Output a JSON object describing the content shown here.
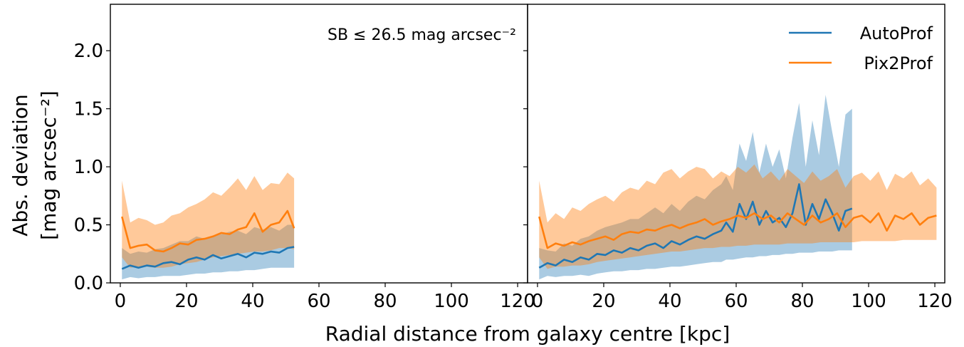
{
  "figure": {
    "xlabel": "Radial distance from galaxy centre [kpc]",
    "ylabel_line1": "Abs. deviation",
    "ylabel_line2": "[mag arcsec⁻²]"
  },
  "colors": {
    "autoprof": "#1f77b4",
    "pix2prof": "#ff7f0e"
  },
  "chart_data": [
    {
      "type": "line",
      "panel": "left",
      "annotation": "SB ≤ 26.5 mag arcsec⁻²",
      "xlim": [
        -3,
        123
      ],
      "ylim": [
        0,
        2.4
      ],
      "xticks": [
        "0",
        "20",
        "40",
        "60",
        "80",
        "100",
        "120"
      ],
      "yticks": [
        "0.0",
        "0.5",
        "1.0",
        "1.5",
        "2.0"
      ],
      "legend": "none",
      "series": [
        {
          "name": "AutoProf",
          "color": "#1f77b4",
          "x": [
            0.5,
            3,
            5.5,
            8,
            10.5,
            13,
            15.5,
            18,
            20.5,
            23,
            25.5,
            28,
            30.5,
            33,
            35.5,
            38,
            40.5,
            43,
            45.5,
            48,
            50.5,
            52.5
          ],
          "values": [
            0.12,
            0.15,
            0.13,
            0.15,
            0.14,
            0.17,
            0.18,
            0.16,
            0.2,
            0.22,
            0.2,
            0.24,
            0.21,
            0.23,
            0.25,
            0.22,
            0.26,
            0.25,
            0.27,
            0.26,
            0.3,
            0.31
          ],
          "band_low": [
            0.03,
            0.05,
            0.04,
            0.05,
            0.05,
            0.06,
            0.06,
            0.06,
            0.07,
            0.08,
            0.08,
            0.09,
            0.09,
            0.1,
            0.1,
            0.11,
            0.11,
            0.12,
            0.13,
            0.13,
            0.13,
            0.13
          ],
          "band_high": [
            0.3,
            0.25,
            0.27,
            0.26,
            0.29,
            0.3,
            0.33,
            0.36,
            0.36,
            0.4,
            0.38,
            0.4,
            0.42,
            0.44,
            0.45,
            0.42,
            0.48,
            0.46,
            0.48,
            0.45,
            0.5,
            0.5
          ]
        },
        {
          "name": "Pix2Prof",
          "color": "#ff7f0e",
          "x": [
            0.5,
            3,
            5.5,
            8,
            10.5,
            13,
            15.5,
            18,
            20.5,
            23,
            25.5,
            28,
            30.5,
            33,
            35.5,
            38,
            40.5,
            43,
            45.5,
            48,
            50.5,
            52.5
          ],
          "values": [
            0.57,
            0.3,
            0.32,
            0.33,
            0.28,
            0.27,
            0.3,
            0.34,
            0.33,
            0.37,
            0.38,
            0.4,
            0.43,
            0.42,
            0.46,
            0.48,
            0.6,
            0.44,
            0.5,
            0.52,
            0.62,
            0.47
          ],
          "band_low": [
            0.22,
            0.13,
            0.14,
            0.14,
            0.13,
            0.13,
            0.14,
            0.16,
            0.17,
            0.18,
            0.2,
            0.22,
            0.23,
            0.24,
            0.25,
            0.26,
            0.27,
            0.27,
            0.28,
            0.3,
            0.3,
            0.29
          ],
          "band_high": [
            0.88,
            0.52,
            0.56,
            0.54,
            0.5,
            0.52,
            0.58,
            0.6,
            0.65,
            0.68,
            0.72,
            0.78,
            0.75,
            0.82,
            0.9,
            0.8,
            0.92,
            0.8,
            0.86,
            0.85,
            0.95,
            0.9
          ]
        }
      ]
    },
    {
      "type": "line",
      "panel": "right",
      "xlim": [
        -3,
        123
      ],
      "ylim": [
        0,
        2.4
      ],
      "xticks": [
        "0",
        "20",
        "40",
        "60",
        "80",
        "100",
        "120"
      ],
      "legend": "top-right",
      "series": [
        {
          "name": "AutoProf",
          "color": "#1f77b4",
          "x": [
            0.5,
            3,
            5.5,
            8,
            10.5,
            13,
            15.5,
            18,
            20.5,
            23,
            25.5,
            28,
            30.5,
            33,
            35.5,
            38,
            40.5,
            43,
            45.5,
            48,
            50.5,
            53,
            55.5,
            57,
            59,
            61,
            63,
            65,
            67,
            69,
            71,
            73,
            75,
            77,
            79,
            81,
            83,
            85,
            87,
            89,
            91,
            93,
            95
          ],
          "values": [
            0.13,
            0.17,
            0.15,
            0.2,
            0.18,
            0.22,
            0.2,
            0.25,
            0.24,
            0.28,
            0.26,
            0.3,
            0.28,
            0.32,
            0.34,
            0.3,
            0.36,
            0.33,
            0.37,
            0.4,
            0.38,
            0.42,
            0.45,
            0.52,
            0.44,
            0.68,
            0.55,
            0.7,
            0.5,
            0.62,
            0.52,
            0.56,
            0.48,
            0.6,
            0.85,
            0.5,
            0.68,
            0.55,
            0.72,
            0.6,
            0.45,
            0.62,
            0.64
          ],
          "band_low": [
            0.03,
            0.06,
            0.05,
            0.06,
            0.06,
            0.07,
            0.06,
            0.08,
            0.09,
            0.1,
            0.1,
            0.11,
            0.11,
            0.12,
            0.12,
            0.13,
            0.14,
            0.14,
            0.15,
            0.16,
            0.17,
            0.18,
            0.18,
            0.2,
            0.2,
            0.21,
            0.22,
            0.22,
            0.23,
            0.23,
            0.24,
            0.24,
            0.25,
            0.25,
            0.26,
            0.26,
            0.26,
            0.27,
            0.27,
            0.27,
            0.28,
            0.28,
            0.28
          ],
          "band_high": [
            0.3,
            0.28,
            0.27,
            0.34,
            0.32,
            0.38,
            0.4,
            0.45,
            0.48,
            0.5,
            0.52,
            0.55,
            0.55,
            0.6,
            0.65,
            0.6,
            0.68,
            0.62,
            0.7,
            0.75,
            0.72,
            0.8,
            0.85,
            0.92,
            0.8,
            1.2,
            1.05,
            1.3,
            0.95,
            1.2,
            1.0,
            1.15,
            0.9,
            1.25,
            1.55,
            1.0,
            1.4,
            1.1,
            1.62,
            1.3,
            1.0,
            1.45,
            1.5
          ]
        },
        {
          "name": "Pix2Prof",
          "color": "#ff7f0e",
          "x": [
            0.5,
            3,
            5.5,
            8,
            10.5,
            13,
            15.5,
            18,
            20.5,
            23,
            25.5,
            28,
            30.5,
            33,
            35.5,
            38,
            40.5,
            43,
            45.5,
            48,
            50.5,
            53,
            55.5,
            58,
            60.5,
            63,
            65.5,
            68,
            70.5,
            73,
            75.5,
            78,
            80.5,
            83,
            85.5,
            88,
            90.5,
            93,
            95.5,
            98,
            100.5,
            103,
            105.5,
            108,
            110.5,
            113,
            115.5,
            118,
            120.5
          ],
          "values": [
            0.57,
            0.3,
            0.34,
            0.32,
            0.35,
            0.33,
            0.36,
            0.38,
            0.4,
            0.37,
            0.42,
            0.44,
            0.43,
            0.46,
            0.45,
            0.48,
            0.5,
            0.47,
            0.5,
            0.52,
            0.55,
            0.5,
            0.53,
            0.55,
            0.58,
            0.56,
            0.6,
            0.55,
            0.58,
            0.52,
            0.6,
            0.55,
            0.5,
            0.58,
            0.52,
            0.55,
            0.6,
            0.48,
            0.56,
            0.58,
            0.52,
            0.6,
            0.45,
            0.58,
            0.55,
            0.6,
            0.5,
            0.56,
            0.58
          ],
          "band_low": [
            0.22,
            0.12,
            0.14,
            0.14,
            0.15,
            0.15,
            0.16,
            0.18,
            0.19,
            0.2,
            0.21,
            0.22,
            0.23,
            0.24,
            0.25,
            0.26,
            0.27,
            0.27,
            0.28,
            0.29,
            0.3,
            0.3,
            0.31,
            0.31,
            0.32,
            0.32,
            0.33,
            0.33,
            0.33,
            0.33,
            0.34,
            0.34,
            0.34,
            0.34,
            0.35,
            0.35,
            0.35,
            0.35,
            0.35,
            0.36,
            0.36,
            0.36,
            0.36,
            0.36,
            0.37,
            0.37,
            0.37,
            0.37,
            0.37
          ],
          "band_high": [
            0.88,
            0.52,
            0.6,
            0.55,
            0.65,
            0.62,
            0.68,
            0.72,
            0.75,
            0.7,
            0.78,
            0.82,
            0.8,
            0.88,
            0.85,
            0.95,
            0.98,
            0.9,
            0.96,
            1.0,
            0.98,
            0.9,
            0.96,
            0.92,
            1.0,
            0.95,
            1.02,
            0.9,
            0.96,
            0.88,
            0.98,
            0.92,
            0.86,
            0.96,
            0.88,
            0.92,
            0.98,
            0.82,
            0.92,
            0.95,
            0.88,
            0.96,
            0.8,
            0.94,
            0.9,
            0.96,
            0.84,
            0.9,
            0.82
          ]
        }
      ]
    }
  ]
}
